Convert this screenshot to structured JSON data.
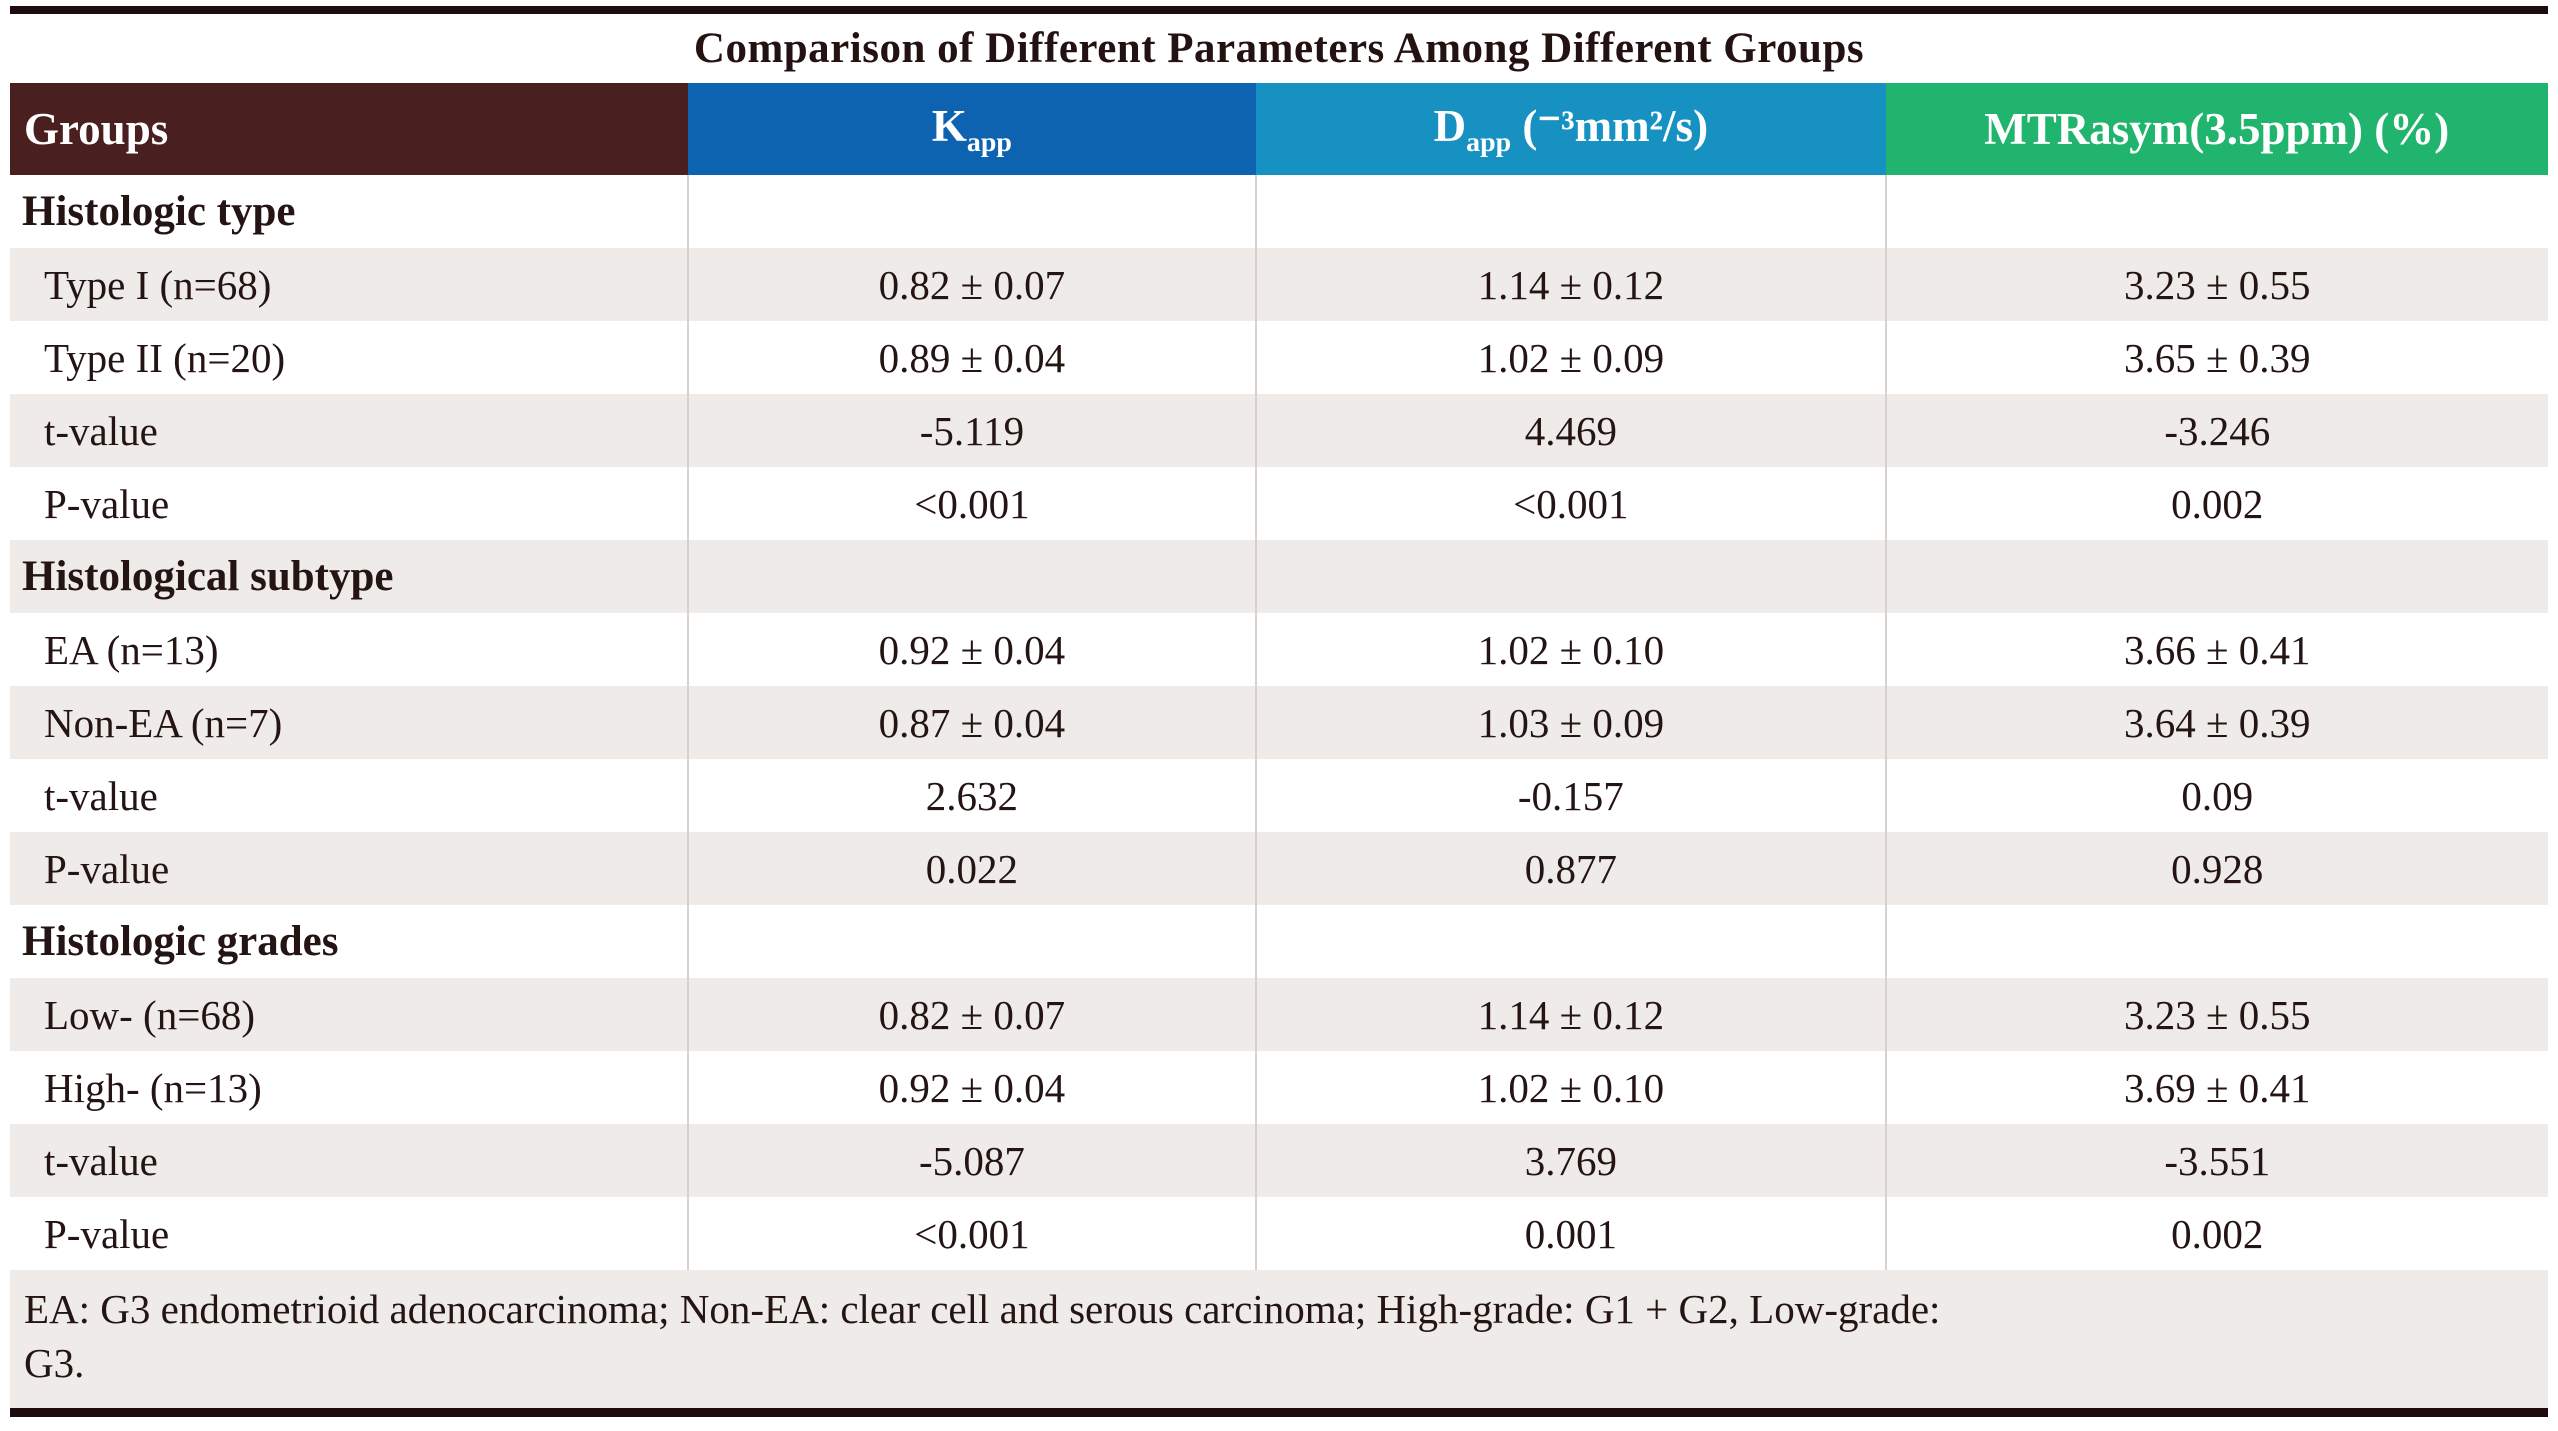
{
  "title": "Comparison of Different Parameters Among Different Groups",
  "colors": {
    "rule": "#1e0b0b",
    "stripe": "#eeebe9",
    "separator": "#d8d1ce",
    "header_text": "#ffffff",
    "body_text": "#241414",
    "groups_header_bg": "#4a1f1f",
    "kapp_header_bg": "#0e63b0",
    "dapp_header_bg": "#1691c1",
    "mtrasym_header_bg": "#21b46e"
  },
  "header": {
    "columns": [
      {
        "label": "Groups",
        "bg": "#4a1f1f"
      },
      {
        "base": "K",
        "sub": "app",
        "bg": "#0e63b0"
      },
      {
        "base": "D",
        "sub": "app",
        "unit": " (⁻³mm²/s)",
        "bg": "#1691c1"
      },
      {
        "label": "MTRasym(3.5ppm) (%)",
        "bg": "#21b46e"
      }
    ]
  },
  "table": {
    "rows": [
      {
        "kind": "section",
        "label": "Histologic type",
        "values": [
          "",
          "",
          ""
        ]
      },
      {
        "kind": "data",
        "label": "Type I (n=68)",
        "values": [
          "0.82 ± 0.07",
          "1.14 ± 0.12",
          "3.23 ± 0.55"
        ]
      },
      {
        "kind": "data",
        "label": "Type II (n=20)",
        "values": [
          "0.89 ± 0.04",
          "1.02 ± 0.09",
          "3.65 ± 0.39"
        ]
      },
      {
        "kind": "data",
        "label": "t-value",
        "values": [
          "-5.119",
          "4.469",
          "-3.246"
        ]
      },
      {
        "kind": "data",
        "label": "P-value",
        "values": [
          "<0.001",
          "<0.001",
          "0.002"
        ]
      },
      {
        "kind": "section",
        "label": "Histological subtype",
        "values": [
          "",
          "",
          ""
        ]
      },
      {
        "kind": "data",
        "label": "EA (n=13)",
        "values": [
          "0.92 ± 0.04",
          "1.02 ± 0.10",
          "3.66 ± 0.41"
        ]
      },
      {
        "kind": "data",
        "label": "Non-EA (n=7)",
        "values": [
          "0.87 ± 0.04",
          "1.03 ± 0.09",
          "3.64 ± 0.39"
        ]
      },
      {
        "kind": "data",
        "label": "t-value",
        "values": [
          "2.632",
          "-0.157",
          "0.09"
        ]
      },
      {
        "kind": "data",
        "label": "P-value",
        "values": [
          "0.022",
          "0.877",
          "0.928"
        ]
      },
      {
        "kind": "section",
        "label": "Histologic grades",
        "values": [
          "",
          "",
          ""
        ]
      },
      {
        "kind": "data",
        "label": "Low- (n=68)",
        "values": [
          "0.82 ± 0.07",
          "1.14 ± 0.12",
          "3.23 ± 0.55"
        ]
      },
      {
        "kind": "data",
        "label": "High- (n=13)",
        "values": [
          "0.92 ± 0.04",
          "1.02 ± 0.10",
          "3.69 ± 0.41"
        ]
      },
      {
        "kind": "data",
        "label": "t-value",
        "values": [
          "-5.087",
          "3.769",
          "-3.551"
        ]
      },
      {
        "kind": "data",
        "label": "P-value",
        "values": [
          "<0.001",
          "0.001",
          "0.002"
        ]
      }
    ]
  },
  "footnote": "EA: G3 endometrioid adenocarcinoma; Non-EA: clear cell and serous carcinoma; High-grade: G1 + G2, Low-grade: G3."
}
